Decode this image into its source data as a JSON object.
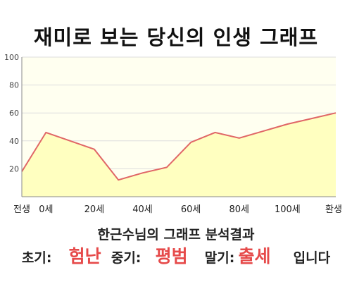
{
  "page": {
    "title": "재미로 보는 당신의 인생 그래프"
  },
  "colors": {
    "line": "#e06666",
    "area": "#ffffc0",
    "plot_bg": "#fffff0",
    "grid": "#dddddd",
    "highlight": "#e64a4a"
  },
  "chart_data": {
    "type": "area",
    "title": "",
    "xlabel": "",
    "ylabel": "",
    "categories": [
      "전생",
      "0세",
      "20세",
      "40세",
      "60세",
      "80세",
      "100세",
      "환생"
    ],
    "x": [
      "전생",
      "0세",
      "",
      "20세",
      "",
      "40세",
      "",
      "60세",
      "",
      "80세",
      "",
      "100세",
      "",
      "환생"
    ],
    "series": [
      {
        "values": [
          18,
          46,
          40,
          34,
          12,
          17,
          21,
          39,
          46,
          42,
          47,
          52,
          56,
          60
        ]
      }
    ],
    "ylim": [
      0,
      100
    ],
    "yticks": [
      20,
      40,
      60,
      80,
      100
    ],
    "grid": true,
    "legend": "none"
  },
  "result": {
    "heading": "한근수님의 그래프 분석결과",
    "early_label": "초기:",
    "early_value": "험난",
    "mid_label": "중기:",
    "mid_value": "평범",
    "late_label": "말기:",
    "late_value": "출세",
    "ending": "입니다"
  }
}
